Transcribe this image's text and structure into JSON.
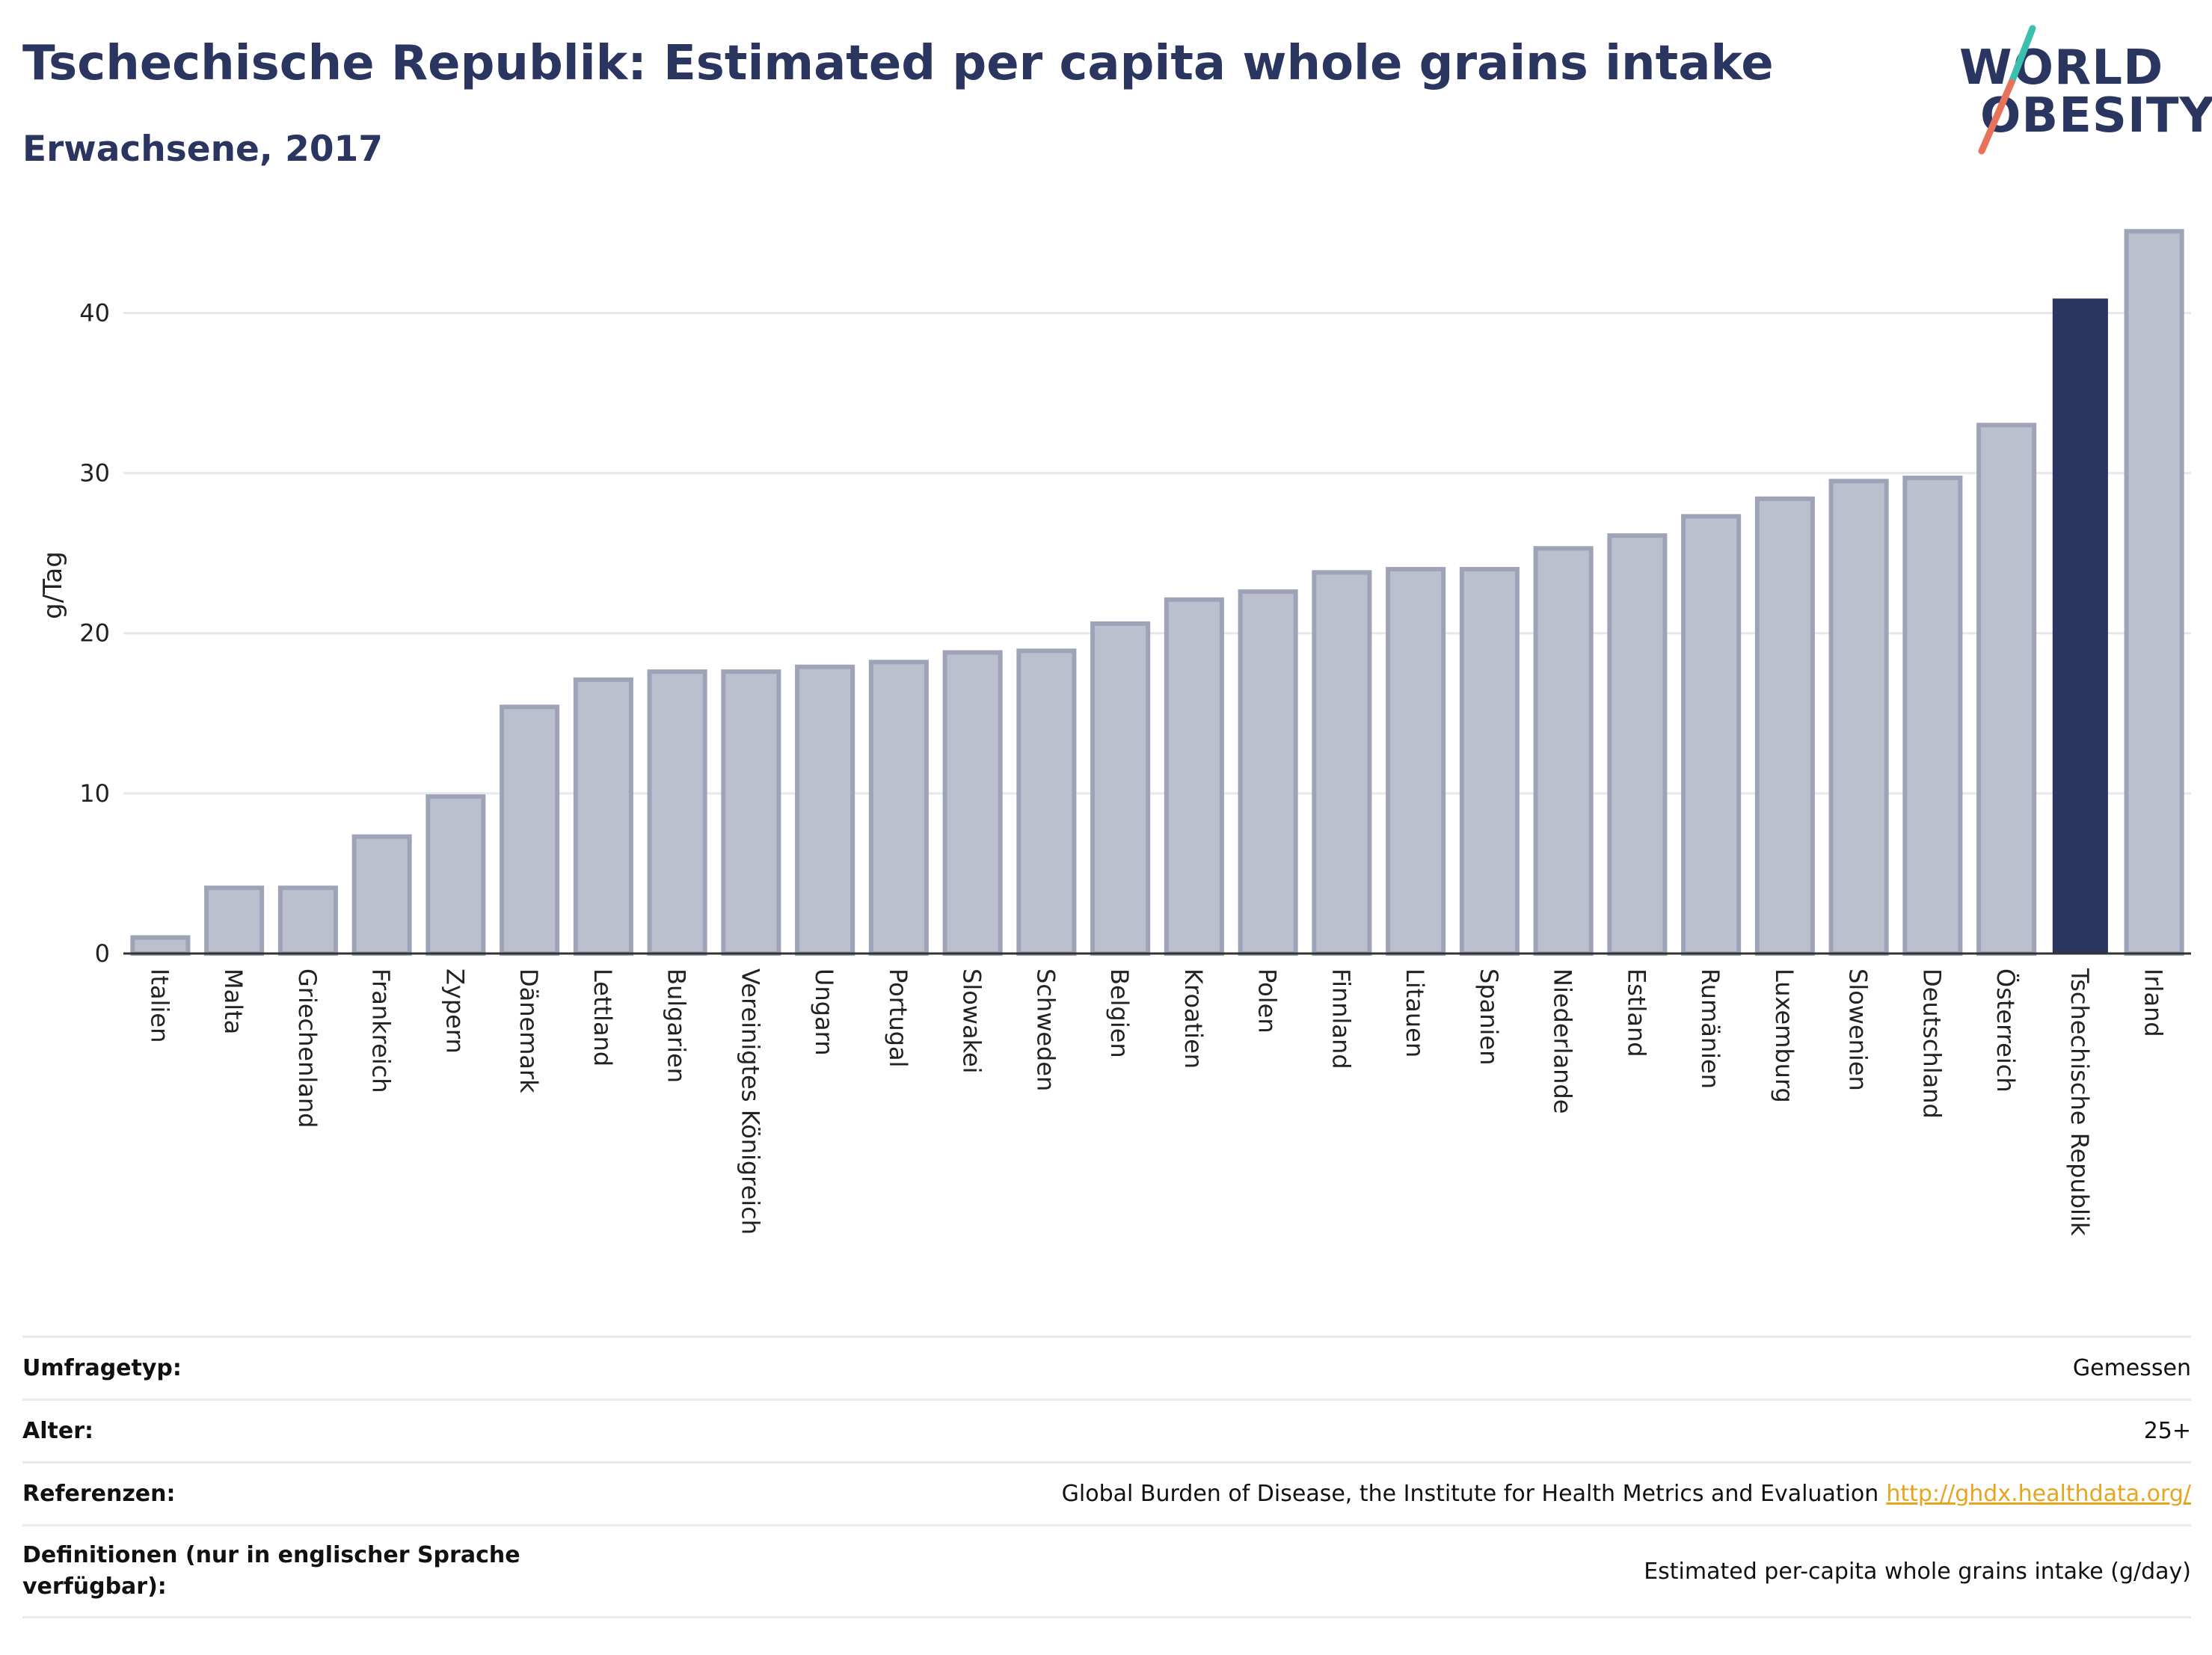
{
  "header": {
    "title": "Tschechische Republik: Estimated per capita whole grains intake",
    "subtitle": "Erwachsene, 2017"
  },
  "logo": {
    "line1": "WORLD",
    "line2": "OBESITY",
    "colors": {
      "text": "#2a3560",
      "slash_top": "#3cbfae",
      "slash_bottom": "#e8735d"
    }
  },
  "chart_data": {
    "type": "bar",
    "ylabel": "g/Tag",
    "ylim": [
      0,
      46
    ],
    "yticks": [
      0,
      10,
      20,
      30,
      40
    ],
    "grid": true,
    "highlight": "Tschechische Republik",
    "colors": {
      "bar": "#bcc0ce",
      "bar_edge": "#9ea3b8",
      "highlight": "#2a3560",
      "grid": "#e6e8ee"
    },
    "categories": [
      "Italien",
      "Malta",
      "Griechenland",
      "Frankreich",
      "Zypern",
      "Dänemark",
      "Lettland",
      "Bulgarien",
      "Vereinigtes Königreich",
      "Ungarn",
      "Portugal",
      "Slowakei",
      "Schweden",
      "Belgien",
      "Kroatien",
      "Polen",
      "Finnland",
      "Litauen",
      "Spanien",
      "Niederlande",
      "Estland",
      "Rumänien",
      "Luxemburg",
      "Slowenien",
      "Deutschland",
      "Österreich",
      "Tschechische Republik",
      "Irland"
    ],
    "values": [
      1.0,
      4.1,
      4.1,
      7.3,
      9.8,
      15.4,
      17.1,
      17.6,
      17.6,
      17.9,
      18.2,
      18.8,
      18.9,
      20.6,
      22.1,
      22.6,
      23.8,
      24.0,
      24.0,
      25.3,
      26.1,
      27.3,
      28.4,
      29.5,
      29.7,
      33.0,
      40.9,
      45.1
    ]
  },
  "meta": {
    "rows": [
      {
        "label": "Umfragetyp:",
        "value": "Gemessen",
        "link": ""
      },
      {
        "label": "Alter:",
        "value": "25+",
        "link": ""
      },
      {
        "label": "Referenzen:",
        "value": "Global Burden of Disease, the Institute for Health Metrics and Evaluation",
        "link": "http://ghdx.healthdata.org/"
      },
      {
        "label": "Definitionen (nur in englischer Sprache verfügbar):",
        "value": "Estimated per-capita whole grains intake (g/day)",
        "link": ""
      }
    ]
  }
}
